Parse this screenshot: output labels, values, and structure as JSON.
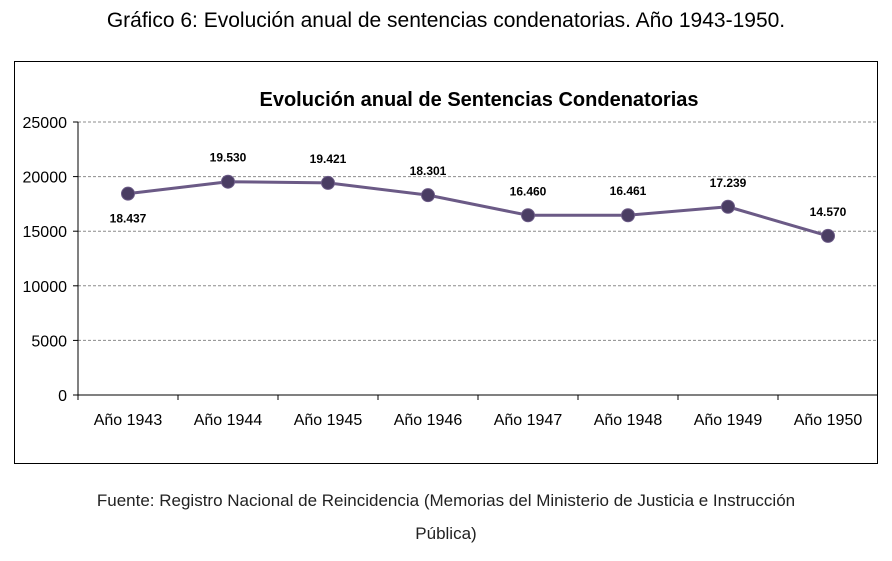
{
  "figure": {
    "caption": "Gráfico 6: Evolución anual de sentencias condenatorias. Año 1943-1950.",
    "source_line1": "Fuente: Registro Nacional de Reincidencia (Memorias del Ministerio de Justicia e Instrucción",
    "source_line2": "Pública)"
  },
  "chart_data": {
    "type": "line",
    "title": "Evolución anual de Sentencias Condenatorias",
    "categories": [
      "Año 1943",
      "Año 1944",
      "Año 1945",
      "Año 1946",
      "Año 1947",
      "Año 1948",
      "Año 1949",
      "Año 1950"
    ],
    "series": [
      {
        "values": [
          18437,
          19530,
          19421,
          18301,
          16460,
          16461,
          17239,
          14570
        ],
        "data_labels": [
          "18.437",
          "19.530",
          "19.421",
          "18.301",
          "16.460",
          "16.461",
          "17.239",
          "14.570"
        ],
        "color": "#6b5a86",
        "marker_color": "#4a3d63"
      }
    ],
    "ylim": [
      0,
      25000
    ],
    "yticks": [
      0,
      5000,
      10000,
      15000,
      20000,
      25000
    ],
    "grid": true,
    "legend": "none"
  }
}
